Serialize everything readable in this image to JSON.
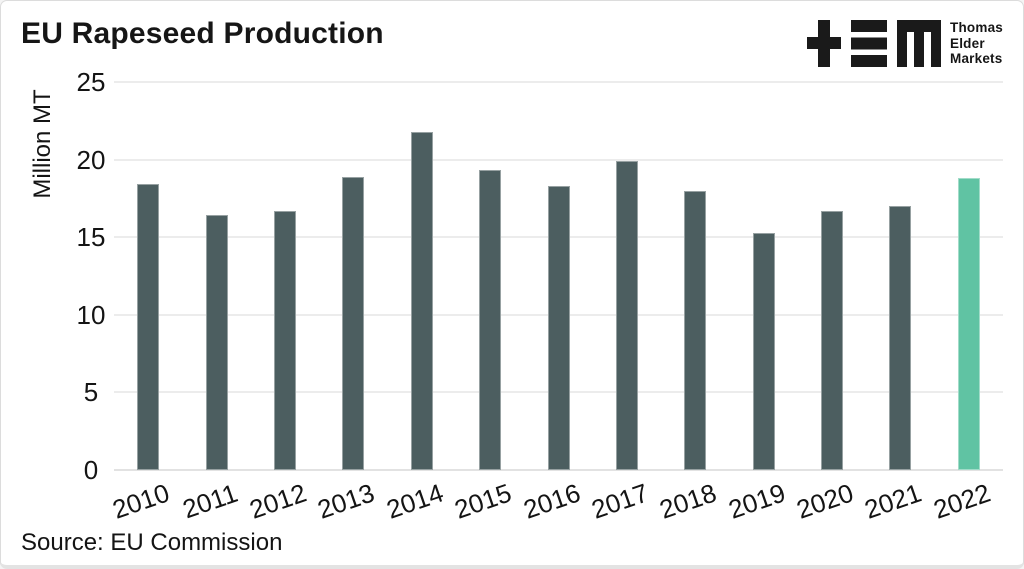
{
  "header": {
    "title": "EU Rapeseed Production"
  },
  "logo": {
    "brand_lines": [
      "Thomas",
      "Elder",
      "Markets"
    ],
    "color": "#1a1a1a"
  },
  "chart_data": {
    "type": "bar",
    "title": "EU Rapeseed Production",
    "categories": [
      "2010",
      "2011",
      "2012",
      "2013",
      "2014",
      "2015",
      "2016",
      "2017",
      "2018",
      "2019",
      "2020",
      "2021",
      "2022"
    ],
    "values": [
      18.4,
      16.4,
      16.7,
      18.9,
      21.8,
      19.3,
      18.3,
      19.9,
      18.0,
      15.3,
      16.7,
      17.0,
      18.8
    ],
    "xlabel": "",
    "ylabel": "Million MT",
    "ylim": [
      0,
      25
    ],
    "yticks": [
      0,
      5,
      10,
      15,
      20,
      25
    ],
    "grid": "horizontal",
    "legend": "none",
    "bar_color": "#4c5e60",
    "highlight_color": "#60c3a3",
    "highlight_category": "2022",
    "source": "Source: EU Commission"
  }
}
